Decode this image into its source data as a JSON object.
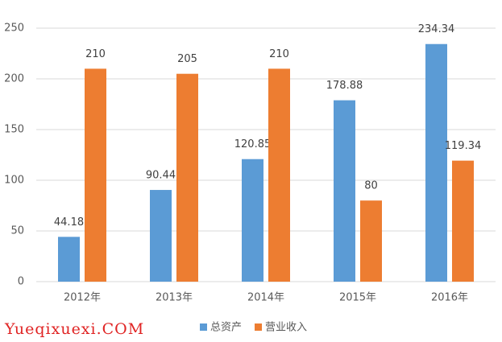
{
  "chart_data": {
    "type": "bar",
    "categories": [
      "2012年",
      "2013年",
      "2014年",
      "2015年",
      "2016年"
    ],
    "series": [
      {
        "name": "总资产",
        "color": "#5b9bd5",
        "values": [
          44.18,
          90.44,
          120.85,
          178.88,
          234.34
        ]
      },
      {
        "name": "营业收入",
        "color": "#ed7d31",
        "values": [
          210,
          205,
          210,
          80,
          119.34
        ]
      }
    ],
    "ylim": [
      0,
      250
    ],
    "yticks": [
      0,
      50,
      100,
      150,
      200,
      250
    ],
    "grid": true,
    "legend": "bottom"
  },
  "watermark": "Yueqixuexi.COM"
}
